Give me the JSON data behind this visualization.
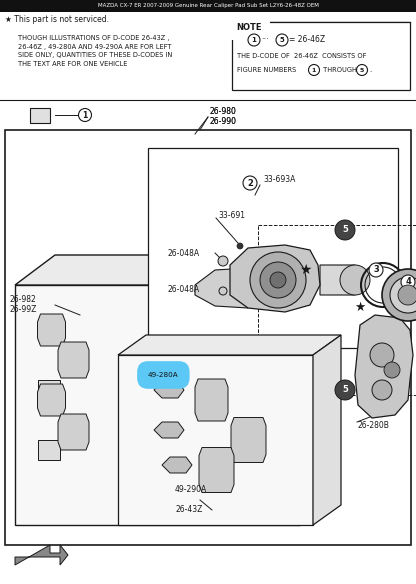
{
  "bg_color": "#ffffff",
  "line_color": "#1a1a1a",
  "highlight_color": "#5bc8f5",
  "title_bar_color": "#111111",
  "title_text": "MAZDA CX-7 ER 2007-2009 Genuine Rear Caliper Pad Sub Set L2Y6-26-48Z OEM",
  "star_note": "★ This part is not serviced.",
  "note_text": "THOUGH ILLUSTRATIONS OF D-CODE 26-43Z ,\n26-46Z , 49-280A AND 49-290A ARE FOR LEFT\nSIDE ONLY, QUANTITIES OF THESE D-CODES IN\nTHE TEXT ARE FOR ONE VEHICLE",
  "note_box_title": "NOTE",
  "note_line1": "         ···   = 26-46Z",
  "note_line2": "THE D-CODE OF  26-46Z  CONSISTS OF",
  "note_line3": "FIGURE NUMBERS:        THROUGH    .",
  "label_26_980": "26-980",
  "label_26_990": "26-990",
  "label_33_693A": "33-693A",
  "label_33_691": "33-691",
  "label_26_048A": "26-048A",
  "label_26_982Z": "26-982",
  "label_26_99Z": "26-99Z",
  "label_26_280B": "26-280B",
  "label_49_280A": "49-280A",
  "label_49_290A": "49-290A",
  "label_26_43Z": "26-43Z"
}
